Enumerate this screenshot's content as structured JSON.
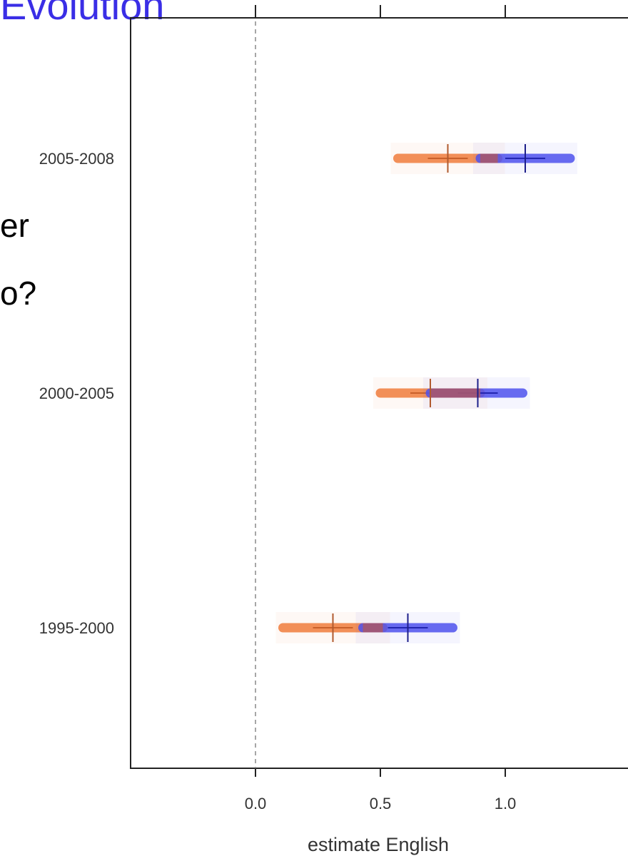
{
  "slide": {
    "title": "Evolution",
    "text_lines": [
      "er",
      "o?"
    ]
  },
  "chart_data": {
    "type": "interval",
    "xlabel": "estimate English",
    "x_ticks": [
      "0.0",
      "0.5",
      "1.0"
    ],
    "xlim": [
      -0.5,
      1.5
    ],
    "reference_line": 0.0,
    "categories": [
      "2005-2008",
      "2000-2005",
      "1995-2000"
    ],
    "series": [
      {
        "color": "#f28a50",
        "intervals": [
          {
            "category": "2005-2008",
            "low": 0.57,
            "estimate": 0.77,
            "high": 0.97
          },
          {
            "category": "2000-2005",
            "low": 0.5,
            "estimate": 0.7,
            "high": 0.9
          },
          {
            "category": "1995-2000",
            "low": 0.11,
            "estimate": 0.31,
            "high": 0.51
          }
        ]
      },
      {
        "color": "#4f52ee",
        "intervals": [
          {
            "category": "2005-2008",
            "low": 0.9,
            "estimate": 1.08,
            "high": 1.26
          },
          {
            "category": "2000-2005",
            "low": 0.7,
            "estimate": 0.89,
            "high": 1.07
          },
          {
            "category": "1995-2000",
            "low": 0.43,
            "estimate": 0.61,
            "high": 0.79
          }
        ]
      }
    ],
    "overlap_color": "#a6576e"
  }
}
